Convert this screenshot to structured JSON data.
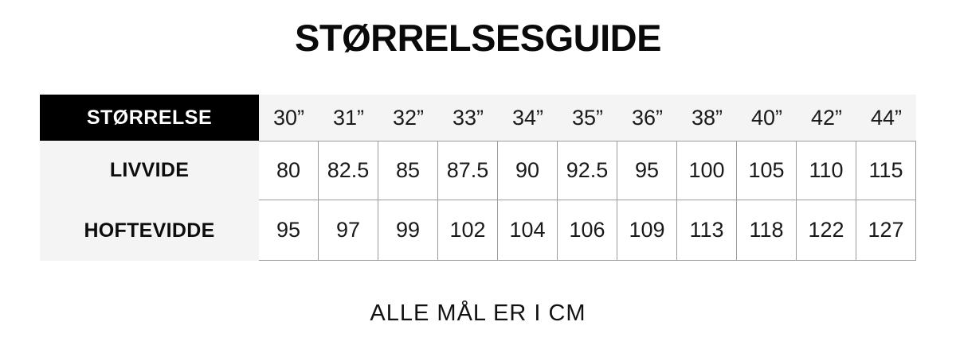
{
  "title": "STØRRELSESGUIDE",
  "footer_note": "ALLE MÅL ER I CM",
  "colors": {
    "header_cell_bg": "#000000",
    "header_cell_text": "#ffffff",
    "label_column_bg": "#f4f4f4",
    "grid_border": "#9c9c9c",
    "page_bg": "#ffffff"
  },
  "table": {
    "corner_label": "STØRRELSE",
    "sizes": [
      "30”",
      "31”",
      "32”",
      "33”",
      "34”",
      "35”",
      "36”",
      "38”",
      "40”",
      "42”",
      "44”"
    ],
    "rows": [
      {
        "label": "LIVVIDE",
        "values": [
          "80",
          "82.5",
          "85",
          "87.5",
          "90",
          "92.5",
          "95",
          "100",
          "105",
          "110",
          "115"
        ]
      },
      {
        "label": "HOFTEVIDDE",
        "values": [
          "95",
          "97",
          "99",
          "102",
          "104",
          "106",
          "109",
          "113",
          "118",
          "122",
          "127"
        ]
      }
    ]
  },
  "chart_data": {
    "type": "table",
    "title": "STØRRELSESGUIDE",
    "note": "ALLE MÅL ER I CM",
    "unit": "cm",
    "columns": [
      "STØRRELSE",
      "30”",
      "31”",
      "32”",
      "33”",
      "34”",
      "35”",
      "36”",
      "38”",
      "40”",
      "42”",
      "44”"
    ],
    "rows": [
      [
        "LIVVIDE",
        80,
        82.5,
        85,
        87.5,
        90,
        92.5,
        95,
        100,
        105,
        110,
        115
      ],
      [
        "HOFTEVIDDE",
        95,
        97,
        99,
        102,
        104,
        106,
        109,
        113,
        118,
        122,
        127
      ]
    ]
  }
}
